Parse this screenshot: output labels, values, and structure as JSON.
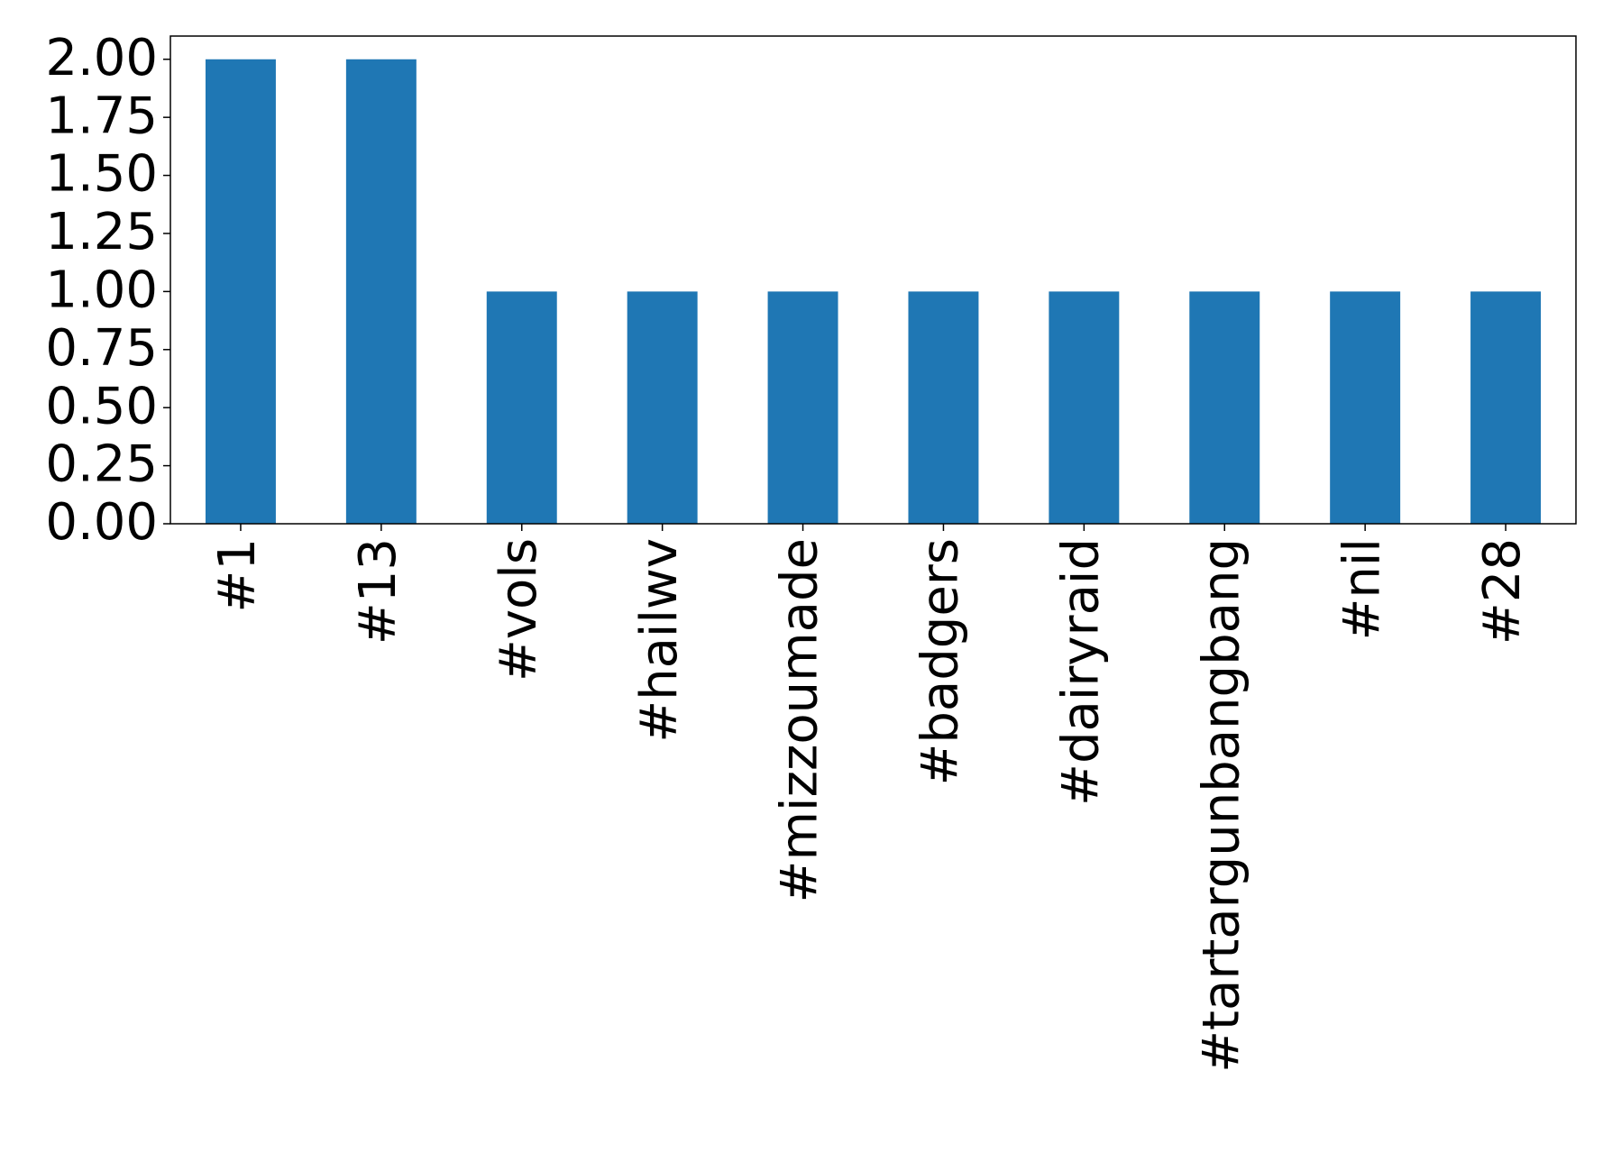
{
  "chart_data": {
    "type": "bar",
    "categories": [
      "#1",
      "#13",
      "#vols",
      "#hailwv",
      "#mizzoumade",
      "#badgers",
      "#dairyraid",
      "#tartargunbangbang",
      "#nil",
      "#28"
    ],
    "values": [
      2,
      2,
      1,
      1,
      1,
      1,
      1,
      1,
      1,
      1
    ],
    "color": "#1f77b4",
    "ylim": [
      0,
      2.1
    ],
    "yticks": [
      {
        "value": 0,
        "label": "0.00"
      },
      {
        "value": 0.25,
        "label": "0.25"
      },
      {
        "value": 0.5,
        "label": "0.50"
      },
      {
        "value": 0.75,
        "label": "0.75"
      },
      {
        "value": 1,
        "label": "1.00"
      },
      {
        "value": 1.25,
        "label": "1.25"
      },
      {
        "value": 1.5,
        "label": "1.50"
      },
      {
        "value": 1.75,
        "label": "1.75"
      },
      {
        "value": 2,
        "label": "2.00"
      }
    ],
    "grid": false
  }
}
